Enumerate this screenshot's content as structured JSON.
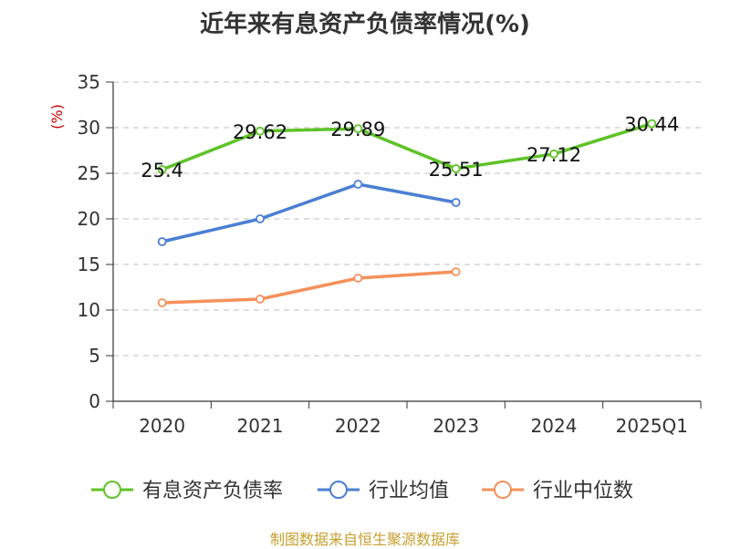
{
  "chart_data": {
    "type": "line",
    "title": "近年来有息资产负债率情况(%)",
    "ylabel": "(%)",
    "categories": [
      "2020",
      "2021",
      "2022",
      "2023",
      "2024",
      "2025Q1"
    ],
    "ylim": [
      0,
      35
    ],
    "yticks": [
      "0",
      "5",
      "10",
      "15",
      "20",
      "25",
      "30",
      "35"
    ],
    "grid": true,
    "legend_position": "bottom",
    "series": [
      {
        "name": "有息资产负债率",
        "color": "#5ec326",
        "values": [
          25.4,
          29.62,
          29.89,
          25.51,
          27.12,
          30.44
        ],
        "labels": [
          "25.4",
          "29.62",
          "29.89",
          "25.51",
          "27.12",
          "30.44"
        ]
      },
      {
        "name": "行业均值",
        "color": "#4a7fd4",
        "values": [
          17.5,
          20.0,
          23.8,
          21.8,
          null,
          null
        ]
      },
      {
        "name": "行业中位数",
        "color": "#f5915a",
        "values": [
          10.8,
          11.2,
          13.5,
          14.2,
          null,
          null
        ]
      }
    ]
  },
  "footer": {
    "source": "制图数据来自恒生聚源数据库"
  }
}
